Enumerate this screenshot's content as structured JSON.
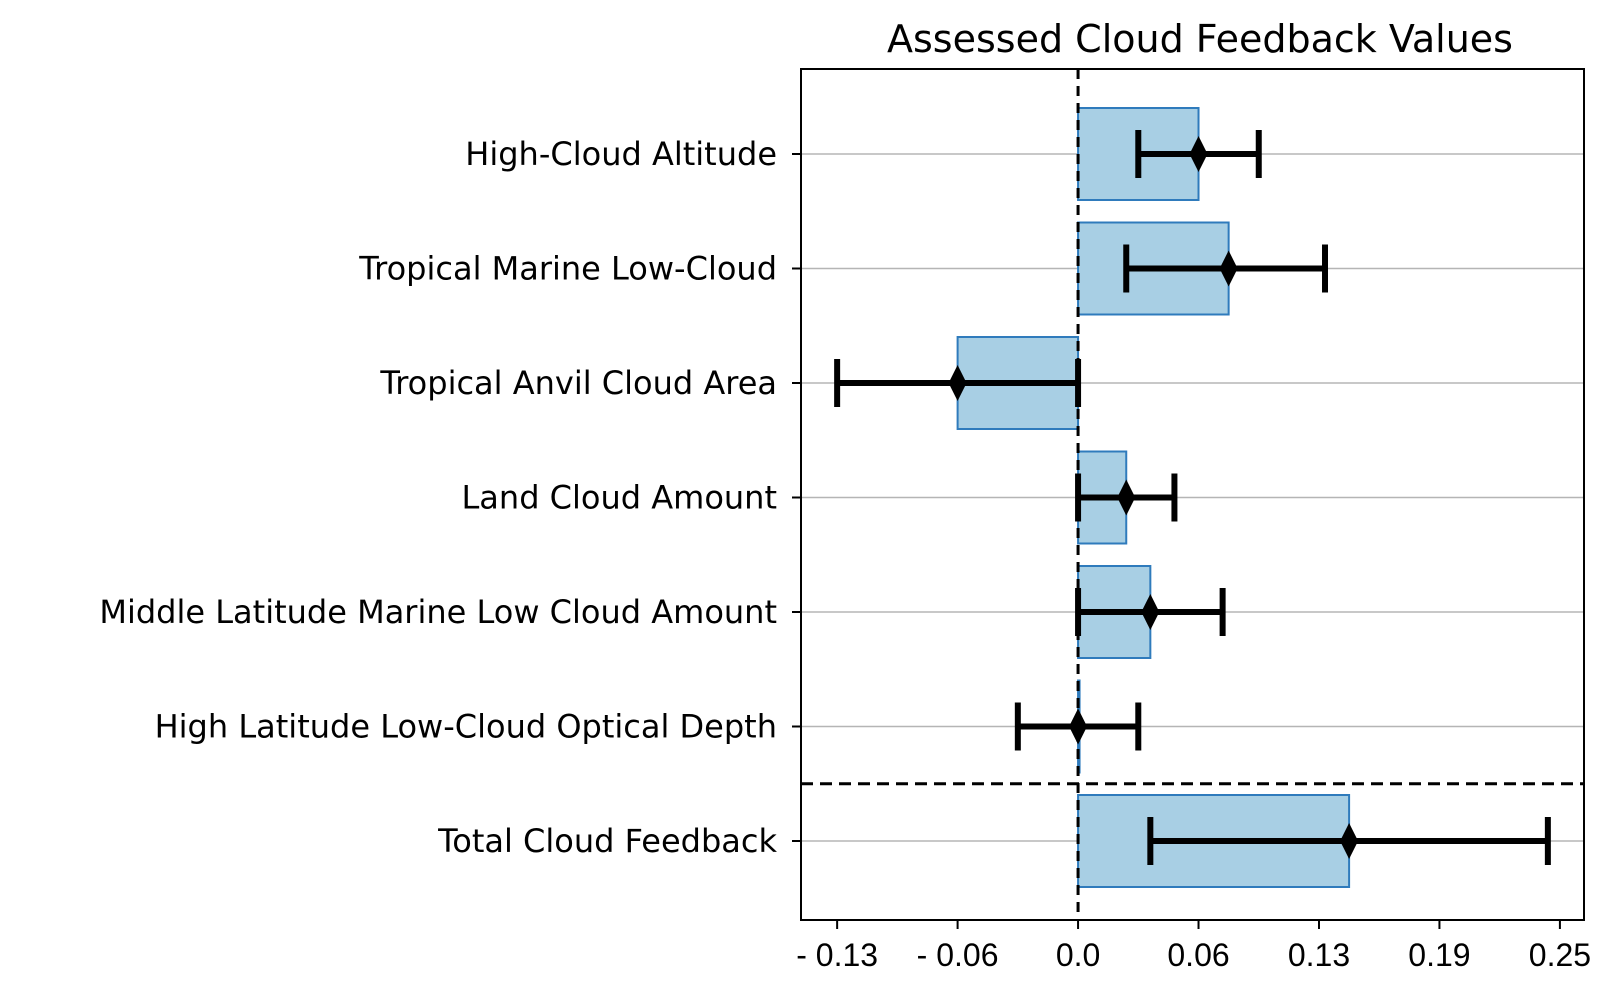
{
  "chart_data": {
    "type": "bar",
    "orientation": "horizontal",
    "title": "Assessed Cloud Feedback Values",
    "xlabel": "",
    "ylabel": "",
    "categories": [
      "High-Cloud Altitude",
      "Tropical Marine Low-Cloud",
      "Tropical Anvil Cloud Area",
      "Land Cloud Amount",
      "Middle Latitude Marine Low Cloud Amount",
      "High Latitude Low-Cloud Optical Depth",
      "Total Cloud Feedback"
    ],
    "values": [
      0.2,
      0.25,
      -0.2,
      0.08,
      0.12,
      0.0,
      0.45
    ],
    "error_low": [
      0.1,
      0.08,
      -0.4,
      0.0,
      0.0,
      -0.1,
      0.12
    ],
    "error_high": [
      0.3,
      0.41,
      0.0,
      0.16,
      0.24,
      0.1,
      0.78
    ],
    "xlim": [
      -0.46,
      0.84
    ],
    "xticks": [
      -0.4,
      -0.2,
      0.0,
      0.2,
      0.4,
      0.6,
      0.8
    ],
    "xtick_labels": [
      "- 0.13",
      "- 0.06",
      "0.0",
      "0.06",
      "0.13",
      "0.19",
      "0.25"
    ],
    "grid": "horizontal",
    "separator_after_index": 5,
    "zero_line": "dashed",
    "colors": {
      "bar_fill": "#a8cfe4",
      "bar_edge": "#2f7bbc",
      "error_bar": "#000000",
      "grid": "#b5b5b5"
    }
  }
}
